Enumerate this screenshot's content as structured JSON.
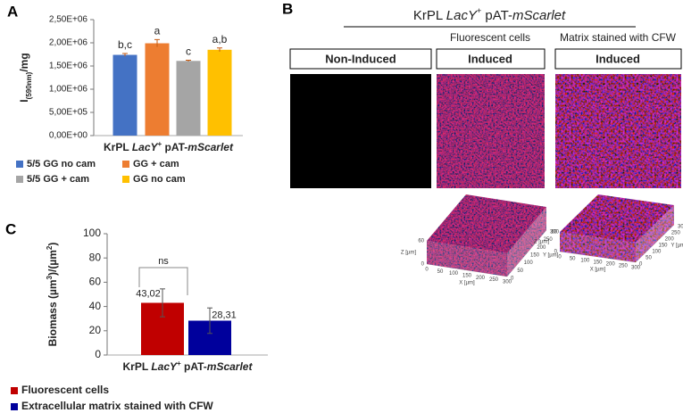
{
  "panels": {
    "a": "A",
    "b": "B",
    "c": "C"
  },
  "chart_data": [
    {
      "type": "bar",
      "y_label": [
        "I",
        "(590nm)",
        "/mg"
      ],
      "x_label": [
        "KrPL ",
        "LacY",
        "+",
        " pAT-",
        "mScarlet"
      ],
      "ylim": [
        0,
        2500000
      ],
      "yticks": [
        {
          "value": 0,
          "label": "0,00E+00"
        },
        {
          "value": 500000,
          "label": "5,00E+05"
        },
        {
          "value": 1000000,
          "label": "1,00E+06"
        },
        {
          "value": 1500000,
          "label": "1,50E+06"
        },
        {
          "value": 2000000,
          "label": "2,00E+06"
        },
        {
          "value": 2500000,
          "label": "2,50E+06"
        }
      ],
      "series": [
        {
          "name": "5/5 GG no cam",
          "color": "#4472c4",
          "values": [
            1740000
          ],
          "errors": [
            30000
          ],
          "annotations": [
            "b,c"
          ]
        },
        {
          "name": "GG + cam",
          "color": "#ed7d31",
          "values": [
            1990000
          ],
          "errors": [
            80000
          ],
          "annotations": [
            "a"
          ]
        },
        {
          "name": "5/5 GG + cam",
          "color": "#a5a5a5",
          "values": [
            1610000
          ],
          "errors": [
            15000
          ],
          "annotations": [
            "c"
          ]
        },
        {
          "name": "GG no cam",
          "color": "#ffc000",
          "values": [
            1850000
          ],
          "errors": [
            40000
          ],
          "annotations": [
            "a,b"
          ]
        }
      ]
    },
    {
      "type": "bar",
      "y_label": [
        "Biomass (µm",
        "3",
        ")/(µm",
        "2",
        ")"
      ],
      "x_label": [
        "KrPL ",
        "LacY",
        "+",
        " pAT-",
        "mScarlet"
      ],
      "ylim": [
        0,
        100
      ],
      "yticks": [
        0,
        20,
        40,
        60,
        80,
        100
      ],
      "annotation": "ns",
      "series": [
        {
          "name": "Fluorescent cells",
          "color": "#c00000",
          "values": [
            43.02
          ],
          "value_labels": [
            "43,02"
          ],
          "errors": [
            11.5
          ]
        },
        {
          "name": "Extracellular matrix stained with CFW",
          "color": "#00009c",
          "values": [
            28.31
          ],
          "value_labels": [
            "28,31"
          ],
          "errors": [
            10.5
          ]
        }
      ]
    }
  ],
  "panel_b": {
    "title": [
      "KrPL ",
      "LacY",
      "+",
      " pAT-",
      "mScarlet"
    ],
    "headers": [
      "Fluorescent cells",
      "Matrix stained with CFW"
    ],
    "conditions": [
      "Non-Induced",
      "Induced",
      "Induced"
    ],
    "plot3d": {
      "x_label": "X [µm]",
      "y_label": "Y [µm]",
      "z_label": "Z [µm]",
      "x_ticks": [
        "0",
        "50",
        "100",
        "150",
        "200",
        "250",
        "300"
      ],
      "y_ticks": [
        "0",
        "50",
        "100",
        "150",
        "200",
        "250",
        "300"
      ],
      "z_ticks": [
        "0",
        "60"
      ]
    }
  }
}
